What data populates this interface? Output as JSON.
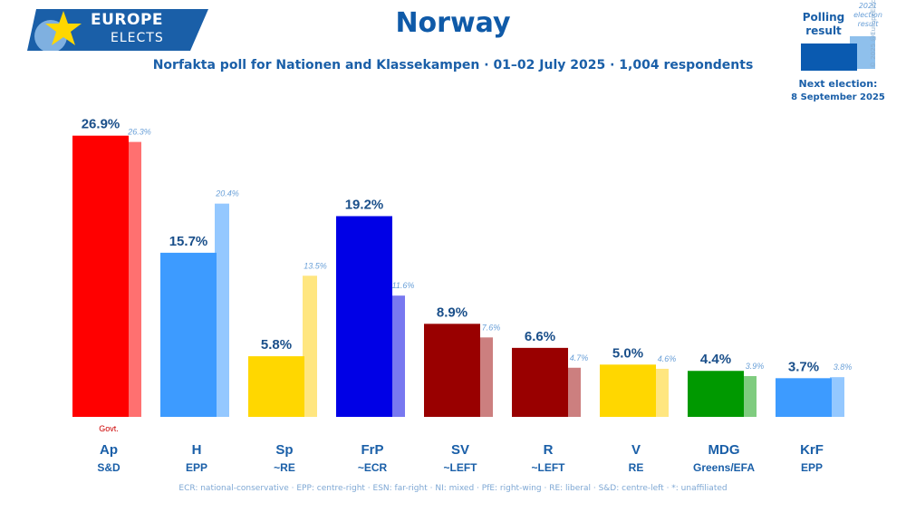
{
  "logo": {
    "line1": "EUROPE",
    "line2": "ELECTS"
  },
  "header": {
    "title": "Norway",
    "subtitle": "Norfakta poll for Nationen and Klassekampen · 01–02 July 2025 · 1,004 respondents"
  },
  "legend": {
    "polling": "Polling result",
    "previous_l1": "2021",
    "previous_l2": "election",
    "previous_l3": "result",
    "next_election_label": "Next election:",
    "next_election_date": "8 September 2025",
    "copyright": "© 2025 @EuropeElects",
    "poll_color": "#0a5ab0",
    "prev_color": "#8fc0ec"
  },
  "footnote": "ECR: national-conservative · EPP: centre-right · ESN: far-right · NI: mixed · PfE: right-wing · RE: liberal · S&D: centre-left · *: unaffiliated",
  "chart_data": {
    "type": "bar",
    "categories": [
      "Ap",
      "H",
      "Sp",
      "FrP",
      "SV",
      "R",
      "V",
      "MDG",
      "KrF"
    ],
    "groups": [
      "S&D",
      "EPP",
      "~RE",
      "~ECR",
      "~LEFT",
      "~LEFT",
      "RE",
      "Greens/EFA",
      "EPP"
    ],
    "series": [
      {
        "values": [
          26.9,
          15.7,
          5.8,
          19.2,
          8.9,
          6.6,
          5.0,
          4.4,
          3.7
        ],
        "labels": [
          "26.9%",
          "15.7%",
          "5.8%",
          "19.2%",
          "8.9%",
          "6.6%",
          "5.0%",
          "4.4%",
          "3.7%"
        ]
      },
      {
        "values": [
          26.3,
          20.4,
          13.5,
          11.6,
          7.6,
          4.7,
          4.6,
          3.9,
          3.8
        ],
        "labels": [
          "26.3%",
          "20.4%",
          "13.5%",
          "11.6%",
          "7.6%",
          "4.7%",
          "4.6%",
          "3.9%",
          "3.8%"
        ]
      }
    ],
    "colors": [
      "#ff0000",
      "#3d9bff",
      "#ffd700",
      "#0000e6",
      "#990000",
      "#990000",
      "#ffd700",
      "#009900",
      "#3d9bff"
    ],
    "prev_colors": [
      "#ff7070",
      "#94c8ff",
      "#ffe680",
      "#7878f0",
      "#cc7f7f",
      "#cc7f7f",
      "#ffe680",
      "#7fcc7f",
      "#94c8ff"
    ],
    "annotation": {
      "category": "Ap",
      "text": "Govt."
    },
    "ylim": [
      0,
      28
    ],
    "grid": false,
    "legend": "top-right"
  }
}
